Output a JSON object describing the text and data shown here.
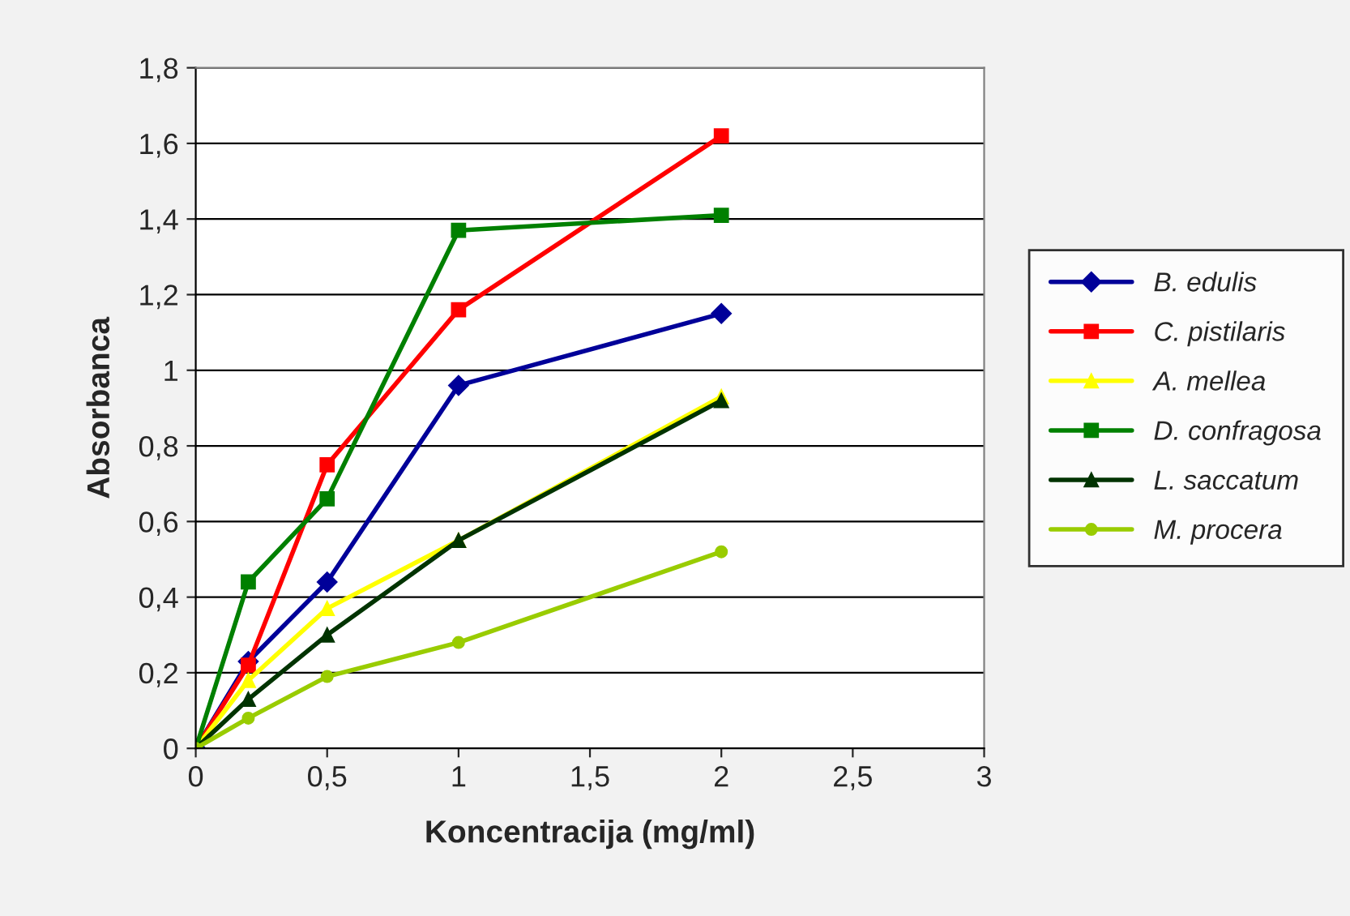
{
  "chart_data": {
    "type": "line",
    "xlabel": "Koncentracija (mg/ml)",
    "ylabel": "Absorbanca",
    "x": [
      0,
      0.2,
      0.5,
      1,
      2
    ],
    "series": [
      {
        "name": "B. edulis",
        "color": "#000099",
        "marker": "diamond",
        "values": [
          0,
          0.23,
          0.44,
          0.96,
          1.15
        ]
      },
      {
        "name": "C. pistilaris",
        "color": "#ff0000",
        "marker": "square",
        "values": [
          0,
          0.22,
          0.75,
          1.16,
          1.62
        ]
      },
      {
        "name": "A. mellea",
        "color": "#ffff00",
        "marker": "triangle",
        "values": [
          0,
          0.18,
          0.37,
          0.55,
          0.93
        ]
      },
      {
        "name": "D. confragosa",
        "color": "#008000",
        "marker": "square",
        "values": [
          0,
          0.44,
          0.66,
          1.37,
          1.41
        ]
      },
      {
        "name": "L. saccatum",
        "color": "#003300",
        "marker": "triangle",
        "values": [
          0,
          0.13,
          0.3,
          0.55,
          0.92
        ]
      },
      {
        "name": "M. procera",
        "color": "#99cc00",
        "marker": "circle",
        "values": [
          0,
          0.08,
          0.19,
          0.28,
          0.52
        ]
      }
    ],
    "xlim": [
      0,
      3
    ],
    "xticks": [
      0,
      {
        "value": 0.5,
        "label": "0,5"
      },
      1,
      {
        "value": 1.5,
        "label": "1,5"
      },
      2,
      {
        "value": 2.5,
        "label": "2,5"
      },
      3
    ],
    "ylim": [
      0,
      1.8
    ],
    "yticks": [
      0,
      {
        "value": 0.2,
        "label": "0,2"
      },
      {
        "value": 0.4,
        "label": "0,4"
      },
      {
        "value": 0.6,
        "label": "0,6"
      },
      {
        "value": 0.8,
        "label": "0,8"
      },
      1,
      {
        "value": 1.2,
        "label": "1,2"
      },
      {
        "value": 1.4,
        "label": "1,4"
      },
      {
        "value": 1.6,
        "label": "1,6"
      },
      {
        "value": 1.8,
        "label": "1,8"
      }
    ],
    "grid": "y",
    "legend": "right",
    "line_style": "solid"
  }
}
